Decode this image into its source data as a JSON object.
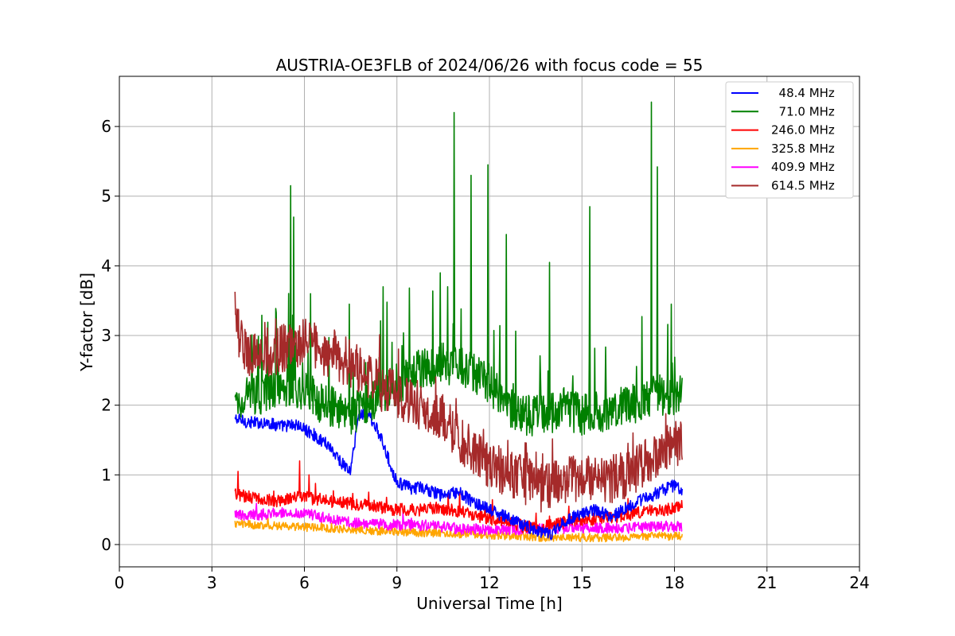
{
  "chart_data": {
    "type": "line",
    "title": "AUSTRIA-OE3FLB of 2024/06/26 with focus code = 55",
    "xlabel": "Universal Time [h]",
    "ylabel": "Y-factor [dB]",
    "xlim": [
      0,
      24
    ],
    "ylim": [
      -0.32,
      6.72
    ],
    "xticks": [
      0,
      3,
      6,
      9,
      12,
      15,
      18,
      21,
      24
    ],
    "xtick_labels": [
      "0",
      "3",
      "6",
      "9",
      "12",
      "15",
      "18",
      "21",
      "24"
    ],
    "yticks": [
      0,
      1,
      2,
      3,
      4,
      5,
      6
    ],
    "ytick_labels": [
      "0",
      "1",
      "2",
      "3",
      "4",
      "5",
      "6"
    ],
    "grid": true,
    "legend_position": "upper-right",
    "series": [
      {
        "name": "  48.4 MHz",
        "color": "#0000ff",
        "x": [
          3.75,
          4.25,
          4.75,
          5.25,
          5.75,
          6.0,
          6.25,
          6.5,
          6.75,
          7.0,
          7.25,
          7.5,
          7.75,
          8.0,
          8.25,
          8.5,
          8.75,
          9.0,
          9.25,
          9.5,
          9.75,
          10.0,
          10.5,
          11.0,
          11.5,
          12.0,
          12.5,
          13.0,
          13.5,
          14.0,
          14.5,
          15.0,
          15.5,
          16.0,
          16.5,
          17.0,
          17.5,
          18.0,
          18.25
        ],
        "y": [
          1.8,
          1.75,
          1.75,
          1.7,
          1.72,
          1.65,
          1.6,
          1.5,
          1.45,
          1.3,
          1.15,
          1.05,
          1.85,
          1.9,
          1.75,
          1.5,
          1.2,
          0.9,
          0.85,
          0.8,
          0.82,
          0.78,
          0.7,
          0.75,
          0.6,
          0.5,
          0.4,
          0.3,
          0.2,
          0.15,
          0.35,
          0.45,
          0.5,
          0.4,
          0.55,
          0.65,
          0.75,
          0.85,
          0.8
        ]
      },
      {
        "name": "  71.0 MHz",
        "color": "#008000",
        "x": [
          3.75,
          4.0,
          4.5,
          5.0,
          5.5,
          6.0,
          6.5,
          7.0,
          7.5,
          8.0,
          8.5,
          9.0,
          9.5,
          10.0,
          10.5,
          11.0,
          11.5,
          12.0,
          12.5,
          13.0,
          13.5,
          14.0,
          14.5,
          15.0,
          15.5,
          16.0,
          16.5,
          17.0,
          17.5,
          18.0,
          18.25
        ],
        "y": [
          2.0,
          2.1,
          2.15,
          2.2,
          2.3,
          2.2,
          2.05,
          1.95,
          1.85,
          2.0,
          2.2,
          2.3,
          2.45,
          2.55,
          2.6,
          2.55,
          2.45,
          2.3,
          2.05,
          1.85,
          1.85,
          1.9,
          1.95,
          1.85,
          1.9,
          1.95,
          2.0,
          2.1,
          2.15,
          2.1,
          2.2
        ],
        "peaks": [
          [
            5.55,
            5.15
          ],
          [
            5.65,
            4.7
          ],
          [
            6.2,
            3.6
          ],
          [
            7.45,
            3.45
          ],
          [
            8.55,
            3.7
          ],
          [
            10.4,
            3.9
          ],
          [
            10.65,
            3.7
          ],
          [
            10.85,
            6.2
          ],
          [
            11.4,
            5.3
          ],
          [
            11.95,
            5.45
          ],
          [
            12.55,
            4.45
          ],
          [
            13.95,
            4.05
          ],
          [
            15.25,
            4.85
          ],
          [
            17.25,
            6.35
          ],
          [
            17.45,
            5.42
          ],
          [
            17.9,
            3.45
          ]
        ]
      },
      {
        "name": "246.0 MHz",
        "color": "#ff0000",
        "x": [
          3.75,
          4.25,
          4.75,
          5.25,
          5.75,
          6.25,
          6.75,
          7.25,
          7.75,
          8.25,
          8.75,
          9.25,
          9.75,
          10.25,
          10.75,
          11.25,
          11.75,
          12.25,
          12.75,
          13.25,
          13.75,
          14.25,
          14.75,
          15.25,
          15.75,
          16.25,
          16.75,
          17.25,
          17.75,
          18.25
        ],
        "y": [
          0.72,
          0.68,
          0.65,
          0.62,
          0.7,
          0.66,
          0.63,
          0.6,
          0.58,
          0.55,
          0.5,
          0.5,
          0.5,
          0.52,
          0.5,
          0.45,
          0.4,
          0.35,
          0.3,
          0.25,
          0.25,
          0.3,
          0.35,
          0.35,
          0.4,
          0.4,
          0.45,
          0.5,
          0.5,
          0.55
        ],
        "peaks": [
          [
            3.85,
            1.05
          ],
          [
            5.85,
            1.2
          ],
          [
            6.15,
            1.0
          ]
        ]
      },
      {
        "name": "325.8 MHz",
        "color": "#ffa500",
        "x": [
          3.75,
          4.5,
          5.25,
          6.0,
          6.75,
          7.5,
          8.25,
          9.0,
          9.75,
          10.5,
          11.25,
          12.0,
          12.75,
          13.5,
          14.25,
          15.0,
          15.75,
          16.5,
          17.25,
          18.0,
          18.25
        ],
        "y": [
          0.3,
          0.28,
          0.27,
          0.25,
          0.23,
          0.22,
          0.2,
          0.18,
          0.17,
          0.16,
          0.15,
          0.14,
          0.12,
          0.1,
          0.1,
          0.1,
          0.1,
          0.1,
          0.12,
          0.12,
          0.12
        ]
      },
      {
        "name": "409.9 MHz",
        "color": "#ff00ff",
        "x": [
          3.75,
          4.5,
          5.25,
          6.0,
          6.75,
          7.5,
          8.25,
          9.0,
          9.75,
          10.5,
          11.25,
          12.0,
          12.75,
          13.5,
          14.25,
          15.0,
          15.75,
          16.5,
          17.25,
          18.0,
          18.25
        ],
        "y": [
          0.42,
          0.43,
          0.45,
          0.45,
          0.38,
          0.32,
          0.3,
          0.28,
          0.28,
          0.25,
          0.22,
          0.22,
          0.22,
          0.22,
          0.23,
          0.24,
          0.24,
          0.24,
          0.25,
          0.26,
          0.26
        ]
      },
      {
        "name": "614.5 MHz",
        "color": "#a52a2a",
        "x": [
          3.75,
          4.0,
          4.5,
          5.0,
          5.5,
          6.0,
          6.5,
          7.0,
          7.5,
          8.0,
          8.5,
          9.0,
          9.5,
          10.0,
          10.5,
          11.0,
          11.5,
          12.0,
          12.5,
          13.0,
          13.5,
          14.0,
          14.5,
          15.0,
          15.5,
          16.0,
          16.5,
          17.0,
          17.5,
          18.0,
          18.25
        ],
        "y": [
          3.3,
          2.8,
          2.7,
          2.75,
          2.85,
          2.9,
          2.8,
          2.7,
          2.6,
          2.45,
          2.25,
          2.15,
          2.05,
          1.95,
          1.8,
          1.55,
          1.3,
          1.15,
          1.05,
          0.95,
          0.8,
          0.85,
          0.9,
          0.95,
          0.95,
          0.95,
          1.0,
          1.15,
          1.35,
          1.4,
          1.55
        ]
      }
    ]
  }
}
